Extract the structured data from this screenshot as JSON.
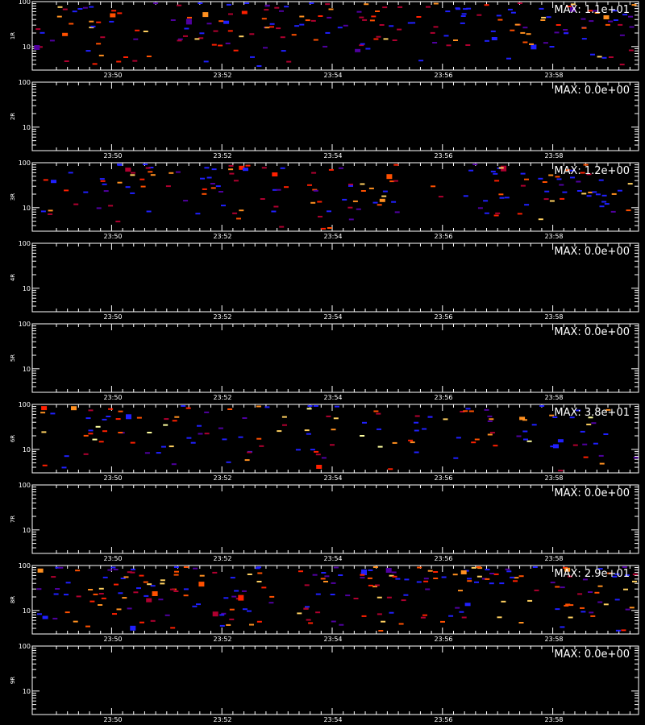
{
  "chart_data": {
    "type": "heatmap",
    "x_ticks": [
      "23:50",
      "23:52",
      "23:54",
      "23:56",
      "23:58"
    ],
    "y_ticks": [
      "100",
      "10"
    ],
    "colors": {
      "background": "#000000",
      "axis": "#ffffff",
      "scale": [
        "#2020ff",
        "#5000a0",
        "#b00030",
        "#ff2000",
        "#ff5000",
        "#ff9020",
        "#ffd060",
        "#ffffa0"
      ]
    },
    "panels": [
      {
        "ylabel": "1R",
        "max_label": "MAX: 1.1e+01",
        "density": 200,
        "max_intensity": 0.8,
        "seed": 11
      },
      {
        "ylabel": "2R",
        "max_label": "MAX: 0.0e+00",
        "density": 0,
        "max_intensity": 0.0,
        "seed": 22
      },
      {
        "ylabel": "3R",
        "max_label": "MAX: 1.2e+00",
        "density": 160,
        "max_intensity": 0.85,
        "seed": 33
      },
      {
        "ylabel": "4R",
        "max_label": "MAX: 0.0e+00",
        "density": 0,
        "max_intensity": 0.0,
        "seed": 44
      },
      {
        "ylabel": "5R",
        "max_label": "MAX: 0.0e+00",
        "density": 0,
        "max_intensity": 0.0,
        "seed": 55
      },
      {
        "ylabel": "6R",
        "max_label": "MAX: 3.8e+01",
        "density": 140,
        "max_intensity": 1.0,
        "seed": 66
      },
      {
        "ylabel": "7R",
        "max_label": "MAX: 0.0e+00",
        "density": 0,
        "max_intensity": 0.0,
        "seed": 77
      },
      {
        "ylabel": "8R",
        "max_label": "MAX: 2.9e+01",
        "density": 230,
        "max_intensity": 0.85,
        "seed": 88
      },
      {
        "ylabel": "9R",
        "max_label": "MAX: 0.0e+00",
        "density": 0,
        "max_intensity": 0.0,
        "seed": 99
      }
    ]
  }
}
